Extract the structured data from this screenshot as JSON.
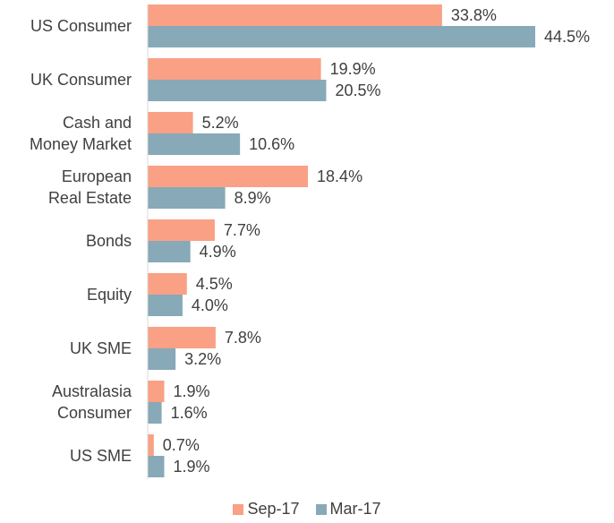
{
  "chart_data": {
    "type": "bar",
    "orientation": "horizontal",
    "categories": [
      "US Consumer",
      "UK Consumer",
      "Cash and\nMoney Market",
      "European\nReal Estate",
      "Bonds",
      "Equity",
      "UK SME",
      "Australasia\nConsumer",
      "US SME"
    ],
    "series": [
      {
        "name": "Sep-17",
        "color": "#f9a085",
        "values": [
          33.8,
          19.9,
          5.2,
          18.4,
          7.7,
          4.5,
          7.8,
          1.9,
          0.7
        ],
        "value_labels": [
          "33.8%",
          "19.9%",
          "5.2%",
          "18.4%",
          "7.7%",
          "4.5%",
          "7.8%",
          "1.9%",
          "0.7%"
        ]
      },
      {
        "name": "Mar-17",
        "color": "#87a9b8",
        "values": [
          44.5,
          20.5,
          10.6,
          8.9,
          4.9,
          4.0,
          3.2,
          1.6,
          1.9
        ],
        "value_labels": [
          "44.5%",
          "20.5%",
          "10.6%",
          "8.9%",
          "4.9%",
          "4.0%",
          "3.2%",
          "1.6%",
          "1.9%"
        ]
      }
    ],
    "legend": "bottom"
  }
}
